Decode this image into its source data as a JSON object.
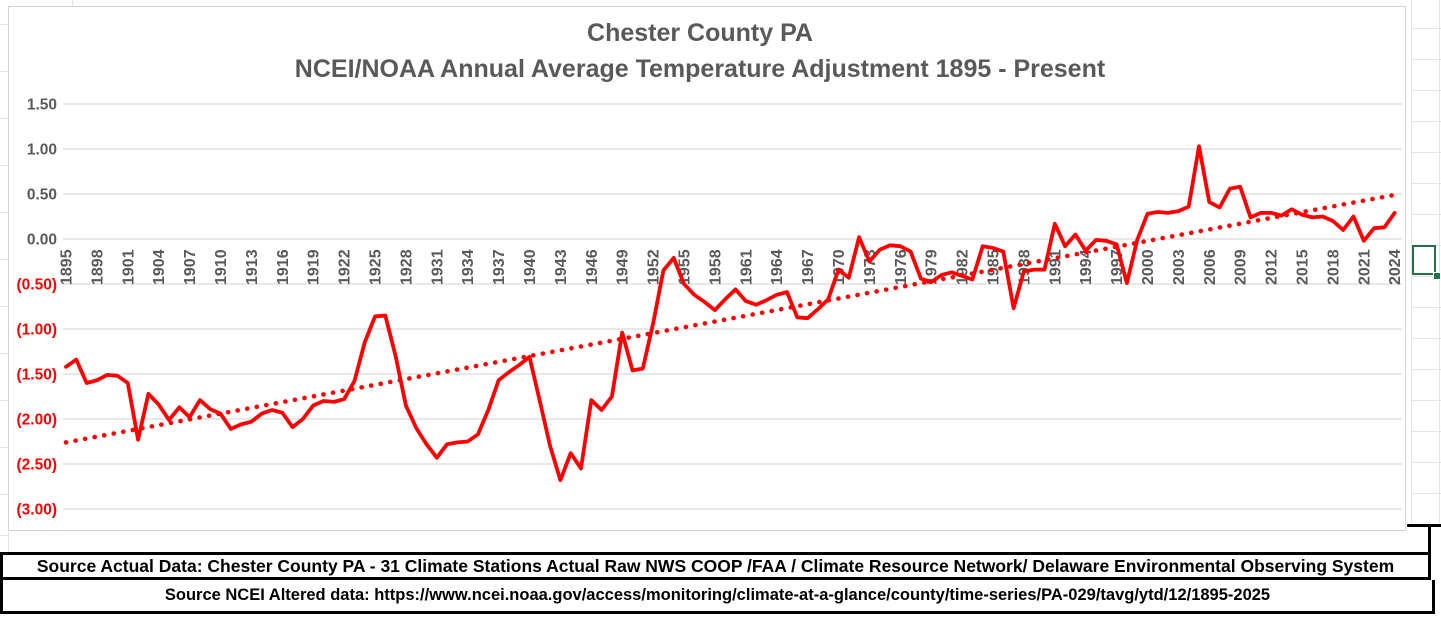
{
  "theme": {
    "series": "#FF0000",
    "axis_text": "#595959",
    "negative_label": "#FF0000",
    "title": "#595959",
    "gridline": "#D9D9D9",
    "selection": "#217346",
    "chart_border": "#D2D2D2"
  },
  "footer": {
    "row1": "Source Actual Data: Chester County PA - 31 Climate Stations Actual Raw NWS COOP /FAA / Climate Resource Network/ Delaware Environmental Observing System",
    "row2": "Source NCEI Altered data:  https://www.ncei.noaa.gov/access/monitoring/climate-at-a-glance/county/time-series/PA-029/tavg/ytd/12/1895-2025"
  },
  "chart_data": {
    "type": "line",
    "title_line1": "Chester County PA",
    "title_line2": "NCEI/NOAA Annual Average Temperature Adjustment 1895 - Present",
    "xlabel": "",
    "ylabel": "",
    "ylim": [
      -3.0,
      1.5
    ],
    "grid": true,
    "legend": "none",
    "y_ticks": [
      {
        "v": 1.5,
        "label": "1.50"
      },
      {
        "v": 1.0,
        "label": "1.00"
      },
      {
        "v": 0.5,
        "label": "0.50"
      },
      {
        "v": 0.0,
        "label": "0.00"
      },
      {
        "v": -0.5,
        "label": "(0.50)"
      },
      {
        "v": -1.0,
        "label": "(1.00)"
      },
      {
        "v": -1.5,
        "label": "(1.50)"
      },
      {
        "v": -2.0,
        "label": "(2.00)"
      },
      {
        "v": -2.5,
        "label": "(2.50)"
      },
      {
        "v": -3.0,
        "label": "(3.00)"
      }
    ],
    "x_tick_years": [
      1895,
      1898,
      1901,
      1904,
      1907,
      1910,
      1913,
      1916,
      1919,
      1922,
      1925,
      1928,
      1931,
      1934,
      1937,
      1940,
      1943,
      1946,
      1949,
      1952,
      1955,
      1958,
      1961,
      1964,
      1967,
      1970,
      1973,
      1976,
      1979,
      1982,
      1985,
      1988,
      1991,
      1994,
      1997,
      2000,
      2003,
      2006,
      2009,
      2012,
      2015,
      2018,
      2021,
      2024
    ],
    "years": [
      1895,
      1896,
      1897,
      1898,
      1899,
      1900,
      1901,
      1902,
      1903,
      1904,
      1905,
      1906,
      1907,
      1908,
      1909,
      1910,
      1911,
      1912,
      1913,
      1914,
      1915,
      1916,
      1917,
      1918,
      1919,
      1920,
      1921,
      1922,
      1923,
      1924,
      1925,
      1926,
      1927,
      1928,
      1929,
      1930,
      1931,
      1932,
      1933,
      1934,
      1935,
      1936,
      1937,
      1938,
      1939,
      1940,
      1941,
      1942,
      1943,
      1944,
      1945,
      1946,
      1947,
      1948,
      1949,
      1950,
      1951,
      1952,
      1953,
      1954,
      1955,
      1956,
      1957,
      1958,
      1959,
      1960,
      1961,
      1962,
      1963,
      1964,
      1965,
      1966,
      1967,
      1968,
      1969,
      1970,
      1971,
      1972,
      1973,
      1974,
      1975,
      1976,
      1977,
      1978,
      1979,
      1980,
      1981,
      1982,
      1983,
      1984,
      1985,
      1986,
      1987,
      1988,
      1989,
      1990,
      1991,
      1992,
      1993,
      1994,
      1995,
      1996,
      1997,
      1998,
      1999,
      2000,
      2001,
      2002,
      2003,
      2004,
      2005,
      2006,
      2007,
      2008,
      2009,
      2010,
      2011,
      2012,
      2013,
      2014,
      2015,
      2016,
      2017,
      2018,
      2019,
      2020,
      2021,
      2022,
      2023,
      2024
    ],
    "series": [
      {
        "name": "Annual Average Temperature Adjustment",
        "color": "#FF0000",
        "values": [
          -1.42,
          -1.34,
          -1.6,
          -1.57,
          -1.51,
          -1.52,
          -1.6,
          -2.23,
          -1.72,
          -1.84,
          -2.01,
          -1.87,
          -1.98,
          -1.79,
          -1.89,
          -1.94,
          -2.11,
          -2.06,
          -2.03,
          -1.94,
          -1.9,
          -1.93,
          -2.09,
          -2.0,
          -1.85,
          -1.8,
          -1.81,
          -1.78,
          -1.58,
          -1.15,
          -0.86,
          -0.85,
          -1.3,
          -1.85,
          -2.1,
          -2.28,
          -2.43,
          -2.28,
          -2.26,
          -2.25,
          -2.17,
          -1.9,
          -1.57,
          -1.48,
          -1.4,
          -1.31,
          -1.8,
          -2.3,
          -2.68,
          -2.38,
          -2.55,
          -1.79,
          -1.9,
          -1.75,
          -1.04,
          -1.46,
          -1.44,
          -0.94,
          -0.35,
          -0.21,
          -0.5,
          -0.62,
          -0.7,
          -0.79,
          -0.67,
          -0.56,
          -0.69,
          -0.73,
          -0.68,
          -0.62,
          -0.59,
          -0.87,
          -0.88,
          -0.78,
          -0.67,
          -0.34,
          -0.43,
          0.02,
          -0.25,
          -0.12,
          -0.07,
          -0.08,
          -0.14,
          -0.44,
          -0.48,
          -0.4,
          -0.37,
          -0.41,
          -0.45,
          -0.08,
          -0.1,
          -0.14,
          -0.77,
          -0.36,
          -0.34,
          -0.34,
          0.17,
          -0.08,
          0.05,
          -0.13,
          -0.01,
          -0.02,
          -0.06,
          -0.49,
          -0.01,
          0.28,
          0.3,
          0.29,
          0.31,
          0.36,
          1.03,
          0.41,
          0.35,
          0.56,
          0.58,
          0.24,
          0.29,
          0.29,
          0.26,
          0.33,
          0.27,
          0.24,
          0.25,
          0.2,
          0.1,
          0.25,
          -0.02,
          0.12,
          0.13,
          0.29
        ]
      }
    ],
    "trendline": {
      "kind": "linear",
      "style": "dotted",
      "color": "#FF0000",
      "y_start": -2.26,
      "y_end": 0.49
    }
  }
}
